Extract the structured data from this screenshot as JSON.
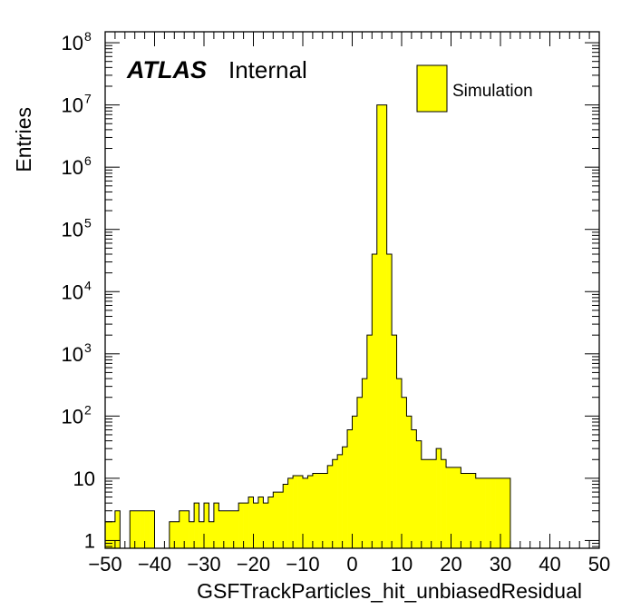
{
  "chart_data": {
    "type": "bar",
    "subtype": "histogram",
    "xlabel": "GSFTrackParticles_hit_unbiasedResidual",
    "ylabel": "Entries",
    "xlim": [
      -50,
      50
    ],
    "ylim": [
      0.75,
      150000000
    ],
    "yscale": "log",
    "bar_color": "#ffff00",
    "edge_color": "#000000",
    "grid": false,
    "legend_position": "top-right",
    "legend": [
      {
        "name": "Simulation",
        "color": "#ffff00"
      }
    ],
    "label_bold": "ATLAS",
    "label_text": "Internal",
    "x_ticks": [
      -50,
      -40,
      -30,
      -20,
      -10,
      0,
      10,
      20,
      30,
      40,
      50
    ],
    "x_tick_labels": [
      "−50",
      "−40",
      "−30",
      "−20",
      "−10",
      "0",
      "10",
      "20",
      "30",
      "40",
      "50"
    ],
    "y_ticks": [
      {
        "value": 1,
        "base": "1",
        "exp": ""
      },
      {
        "value": 10,
        "base": "10",
        "exp": ""
      },
      {
        "value": 100,
        "base": "10",
        "exp": "2"
      },
      {
        "value": 1000,
        "base": "10",
        "exp": "3"
      },
      {
        "value": 10000,
        "base": "10",
        "exp": "4"
      },
      {
        "value": 100000,
        "base": "10",
        "exp": "5"
      },
      {
        "value": 1000000,
        "base": "10",
        "exp": "6"
      },
      {
        "value": 10000000,
        "base": "10",
        "exp": "7"
      },
      {
        "value": 100000000,
        "base": "10",
        "exp": "8"
      }
    ],
    "bin_edges_start": -50,
    "bin_width": 1,
    "values": [
      2,
      2,
      3,
      0,
      0,
      3,
      3,
      3,
      3,
      3,
      0,
      0,
      0,
      2,
      2,
      3,
      3,
      2,
      4,
      2,
      4,
      2,
      4,
      3,
      3,
      3,
      3,
      4,
      4,
      5,
      4,
      5,
      4,
      5,
      6,
      6,
      8,
      10,
      11,
      11,
      10,
      11,
      12,
      12,
      12,
      16,
      20,
      24,
      32,
      60,
      100,
      200,
      400,
      2000,
      40000,
      10000000,
      10000000,
      40000,
      2000,
      400,
      200,
      100,
      60,
      40,
      20,
      20,
      20,
      30,
      20,
      15,
      15,
      15,
      12,
      12,
      12,
      10,
      10,
      10,
      10,
      10,
      10,
      10,
      0,
      0,
      0,
      0,
      0,
      0,
      0,
      0,
      0,
      0,
      0,
      0,
      0,
      0,
      0,
      0,
      0,
      0
    ]
  }
}
